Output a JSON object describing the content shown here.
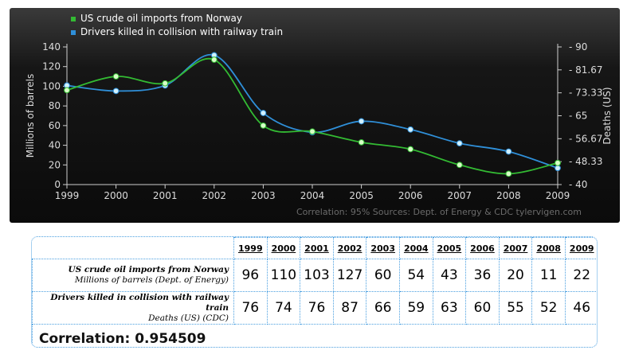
{
  "chart_data": {
    "type": "line",
    "x": [
      "1999",
      "2000",
      "2001",
      "2002",
      "2003",
      "2004",
      "2005",
      "2006",
      "2007",
      "2008",
      "2009"
    ],
    "series": [
      {
        "name": "US crude oil imports from Norway",
        "axis": "left",
        "color": "#33bb33",
        "values": [
          96,
          110,
          103,
          127,
          60,
          54,
          43,
          36,
          20,
          11,
          22
        ]
      },
      {
        "name": "Drivers killed in collision with railway train",
        "axis": "right",
        "color": "#2f8fd8",
        "values": [
          76,
          74,
          76,
          87,
          66,
          59,
          63,
          60,
          55,
          52,
          46
        ]
      }
    ],
    "ylabel": "Millions of barrels",
    "ylabel_right": "Deaths (US)",
    "ylim": [
      0,
      140
    ],
    "yticks": [
      "0",
      "20",
      "40",
      "60",
      "80",
      "100",
      "120",
      "140"
    ],
    "ylim_right": [
      40,
      90
    ],
    "yticks_right": [
      "40",
      "48.33",
      "56.67",
      "65",
      "73.33",
      "81.67",
      "90"
    ],
    "legend_position": "top-left",
    "grid": false,
    "footer": "Correlation: 95%    Sources: Dept. of Energy & CDC    tylervigen.com"
  },
  "table": {
    "years": [
      "1999",
      "2000",
      "2001",
      "2002",
      "2003",
      "2004",
      "2005",
      "2006",
      "2007",
      "2008",
      "2009"
    ],
    "rows": [
      {
        "label1": "US crude oil imports from Norway",
        "label2": "Millions of barrels (Dept. of Energy)",
        "values": [
          "96",
          "110",
          "103",
          "127",
          "60",
          "54",
          "43",
          "36",
          "20",
          "11",
          "22"
        ]
      },
      {
        "label1": "Drivers killed in collision with railway train",
        "label2": "Deaths (US) (CDC)",
        "values": [
          "76",
          "74",
          "76",
          "87",
          "66",
          "59",
          "63",
          "60",
          "55",
          "52",
          "46"
        ]
      }
    ],
    "correlation": "Correlation: 0.954509"
  }
}
